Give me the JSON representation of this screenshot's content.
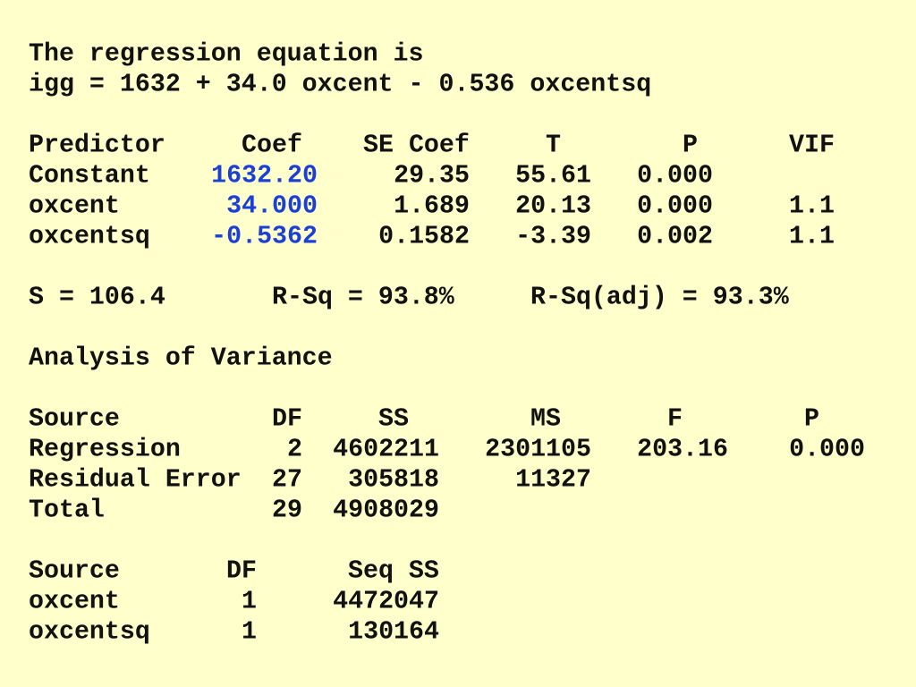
{
  "equation": {
    "title": "The regression equation is",
    "formula": "igg = 1632 + 34.0 oxcent - 0.536 oxcentsq"
  },
  "coefficients": {
    "columns": [
      "Predictor",
      "Coef",
      "SE Coef",
      "T",
      "P",
      "VIF"
    ],
    "rows": [
      [
        "Constant",
        "1632.20",
        "29.35",
        "55.61",
        "0.000"
      ],
      [
        "oxcent",
        "34.000",
        "1.689",
        "20.13",
        "0.000",
        "1.1"
      ],
      [
        "oxcentsq",
        "-0.5362",
        "0.1582",
        "-3.39",
        "0.002",
        "1.1"
      ]
    ]
  },
  "summary": [
    "S = 106.4",
    "R-Sq = 93.8%",
    "R-Sq(adj) = 93.3%"
  ],
  "anova": {
    "title": "Analysis of Variance",
    "columns": [
      "Source",
      "DF",
      "SS",
      "MS",
      "F",
      "P"
    ],
    "rows": [
      [
        "Regression",
        "2",
        "4602211",
        "2301105",
        "203.16",
        "0.000"
      ],
      [
        "Residual Error",
        "27",
        "305818",
        "11327"
      ],
      [
        "Total",
        "29",
        "4908029"
      ]
    ]
  },
  "sequential": {
    "columns": [
      "Source",
      "DF",
      "Seq SS"
    ],
    "rows": [
      [
        "oxcent",
        "1",
        "4472047"
      ],
      [
        "oxcentsq",
        "1",
        "130164"
      ]
    ]
  }
}
